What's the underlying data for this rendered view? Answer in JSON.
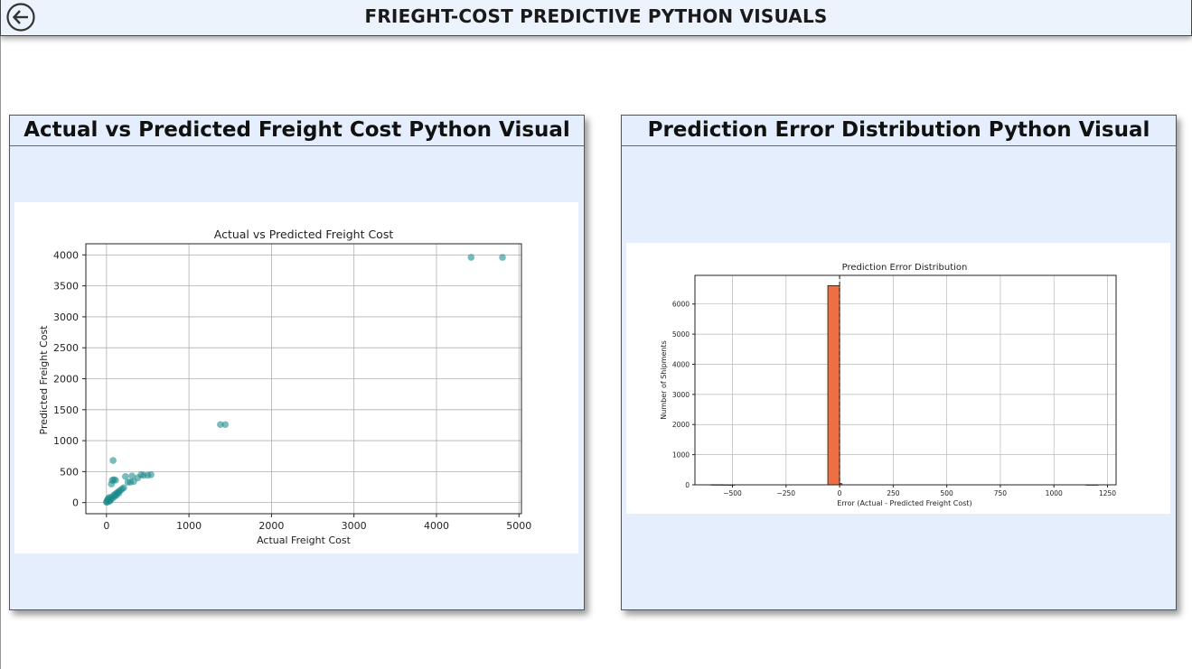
{
  "page": {
    "title": "FRIEGHT-COST PREDICTIVE PYTHON VISUALS",
    "back_icon": "back-arrow-circle-icon"
  },
  "panels": {
    "scatter": {
      "title": "Actual vs Predicted Freight Cost Python Visual"
    },
    "histogram": {
      "title": "Prediction Error Distribution Python Visual"
    }
  },
  "chart_data": [
    {
      "type": "scatter",
      "title": "Actual vs Predicted Freight Cost",
      "xlabel": "Actual Freight Cost",
      "ylabel": "Predicted Freight Cost",
      "xlim": [
        -250,
        5030
      ],
      "ylim": [
        -180,
        4180
      ],
      "xticks": [
        0,
        1000,
        2000,
        3000,
        4000,
        5000
      ],
      "yticks": [
        0,
        500,
        1000,
        1500,
        2000,
        2500,
        3000,
        3500,
        4000
      ],
      "grid": true,
      "marker_color": "#1a8a8a",
      "points": [
        [
          0,
          10
        ],
        [
          10,
          40
        ],
        [
          20,
          60
        ],
        [
          30,
          80
        ],
        [
          45,
          30
        ],
        [
          60,
          90
        ],
        [
          75,
          70
        ],
        [
          90,
          120
        ],
        [
          100,
          100
        ],
        [
          110,
          140
        ],
        [
          120,
          120
        ],
        [
          130,
          160
        ],
        [
          150,
          180
        ],
        [
          170,
          200
        ],
        [
          190,
          220
        ],
        [
          210,
          240
        ],
        [
          60,
          300
        ],
        [
          70,
          360
        ],
        [
          90,
          370
        ],
        [
          110,
          360
        ],
        [
          80,
          680
        ],
        [
          150,
          150
        ],
        [
          230,
          420
        ],
        [
          260,
          330
        ],
        [
          290,
          330
        ],
        [
          310,
          430
        ],
        [
          330,
          340
        ],
        [
          380,
          400
        ],
        [
          420,
          450
        ],
        [
          450,
          440
        ],
        [
          500,
          440
        ],
        [
          540,
          450
        ],
        [
          30,
          20
        ],
        [
          50,
          50
        ],
        [
          5,
          5
        ],
        [
          1380,
          1260
        ],
        [
          1440,
          1260
        ],
        [
          4420,
          3960
        ],
        [
          4800,
          3960
        ]
      ]
    },
    {
      "type": "bar",
      "title": "Prediction Error Distribution",
      "xlabel": "Error (Actual - Predicted Freight Cost)",
      "ylabel": "Number of Shipments",
      "xlim": [
        -675,
        1290
      ],
      "ylim": [
        0,
        6950
      ],
      "xticks": [
        -500,
        -250,
        0,
        250,
        500,
        750,
        1000,
        1250
      ],
      "xtick_labels": [
        "−500",
        "−250",
        "0",
        "250",
        "500",
        "750",
        "1000",
        "1250"
      ],
      "yticks": [
        0,
        1000,
        2000,
        3000,
        4000,
        5000,
        6000
      ],
      "grid": true,
      "bar_color": "#ee6f42",
      "bins": [
        {
          "x0": -600,
          "x1": -545,
          "count": 5
        },
        {
          "x0": -545,
          "x1": -490,
          "count": 3
        },
        {
          "x0": -55,
          "x1": 0,
          "count": 6610
        },
        {
          "x0": 0,
          "x1": 10,
          "count": 40
        },
        {
          "x0": 1150,
          "x1": 1205,
          "count": 3
        }
      ],
      "vline": {
        "x": 0,
        "style": "dashed",
        "color": "#111111"
      }
    }
  ]
}
